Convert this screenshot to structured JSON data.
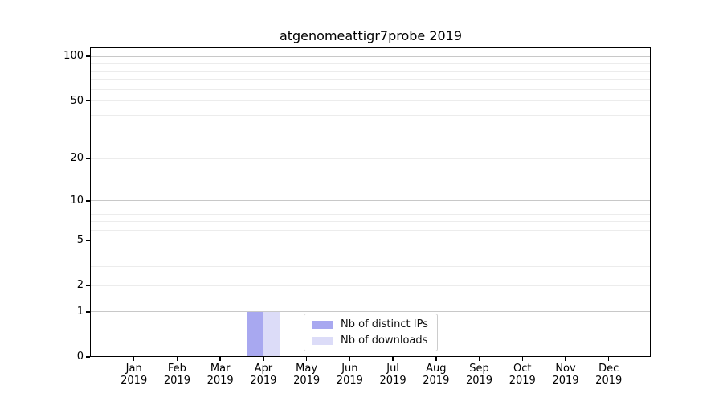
{
  "title": "atgenomeattigr7probe 2019",
  "chart_data": {
    "type": "bar",
    "title": "atgenomeattigr7probe 2019",
    "year": "2019",
    "categories": [
      "Jan",
      "Feb",
      "Mar",
      "Apr",
      "May",
      "Jun",
      "Jul",
      "Aug",
      "Sep",
      "Oct",
      "Nov",
      "Dec"
    ],
    "x_tick_labels": [
      "Jan 2019",
      "Feb 2019",
      "Mar 2019",
      "Apr 2019",
      "May 2019",
      "Jun 2019",
      "Jul 2019",
      "Aug 2019",
      "Sep 2019",
      "Oct 2019",
      "Nov 2019",
      "Dec 2019"
    ],
    "series": [
      {
        "name": "Nb of distinct IPs",
        "color": "#a8a8f0",
        "values": [
          0,
          0,
          0,
          1,
          0,
          0,
          0,
          0,
          0,
          0,
          0,
          0
        ]
      },
      {
        "name": "Nb of downloads",
        "color": "#dcdcf8",
        "values": [
          0,
          0,
          0,
          1,
          0,
          0,
          0,
          0,
          0,
          0,
          0,
          0
        ]
      }
    ],
    "y_axis": {
      "scale": "log10(1+x)",
      "ticks": [
        100,
        50,
        20,
        10,
        5,
        2,
        1,
        0
      ],
      "gridlines_major": [
        1,
        10,
        100
      ],
      "gridlines_minor": [
        2,
        3,
        4,
        5,
        6,
        7,
        8,
        9,
        20,
        30,
        40,
        50,
        60,
        70,
        80,
        90
      ],
      "ylim": [
        0,
        112
      ]
    },
    "legend": {
      "position": "lower center",
      "entries": [
        "Nb of distinct IPs",
        "Nb of downloads"
      ]
    },
    "grid": true
  },
  "colors": {
    "background": "#ffffff",
    "spine": "#000000",
    "grid_major": "#c8c8c8",
    "grid_minor": "#ececec",
    "text": "#000000",
    "bar_distinct_ips": "#a8a8f0",
    "bar_downloads": "#dcdcf8",
    "legend_border": "#cccccc"
  }
}
